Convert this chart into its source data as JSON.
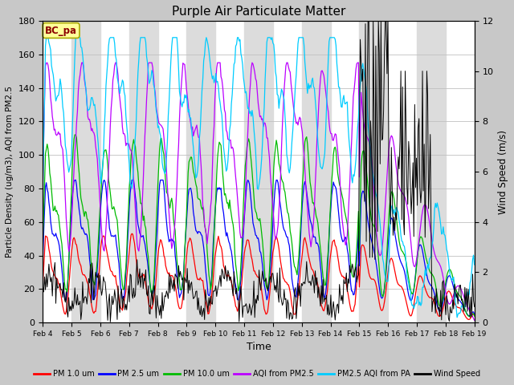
{
  "title": "Purple Air Particulate Matter",
  "xlabel": "Time",
  "ylabel_left": "Particle Density (ug/m3), AQI from PM2.5",
  "ylabel_right": "Wind Speed (m/s)",
  "ylim_left": [
    0,
    180
  ],
  "ylim_right": [
    0,
    12
  ],
  "x_tick_labels": [
    "Feb 4",
    "Feb 5",
    "Feb 6",
    "Feb 7",
    "Feb 8",
    "Feb 9",
    "Feb 10",
    "Feb 11",
    "Feb 12",
    "Feb 13",
    "Feb 14",
    "Feb 15",
    "Feb 16",
    "Feb 17",
    "Feb 18",
    "Feb 19"
  ],
  "annotation_text": "BC_pa",
  "annotation_color": "#8B0000",
  "annotation_bg": "#FFFF99",
  "annotation_edge": "#AAAA00",
  "series_colors": {
    "pm1": "#FF0000",
    "pm25": "#0000FF",
    "pm10": "#00BB00",
    "aqi_pm25": "#BB00FF",
    "pa_aqi": "#00CCFF",
    "wind": "#000000"
  },
  "legend_labels": [
    "PM 1.0 um",
    "PM 2.5 um",
    "PM 10.0 um",
    "AQI from PM2.5",
    "PM2.5 AQI from PA",
    "Wind Speed"
  ],
  "n_points": 500,
  "fig_bg": "#C8C8C8",
  "plot_bg": "#FFFFFF",
  "band_color": "#DCDCDC"
}
